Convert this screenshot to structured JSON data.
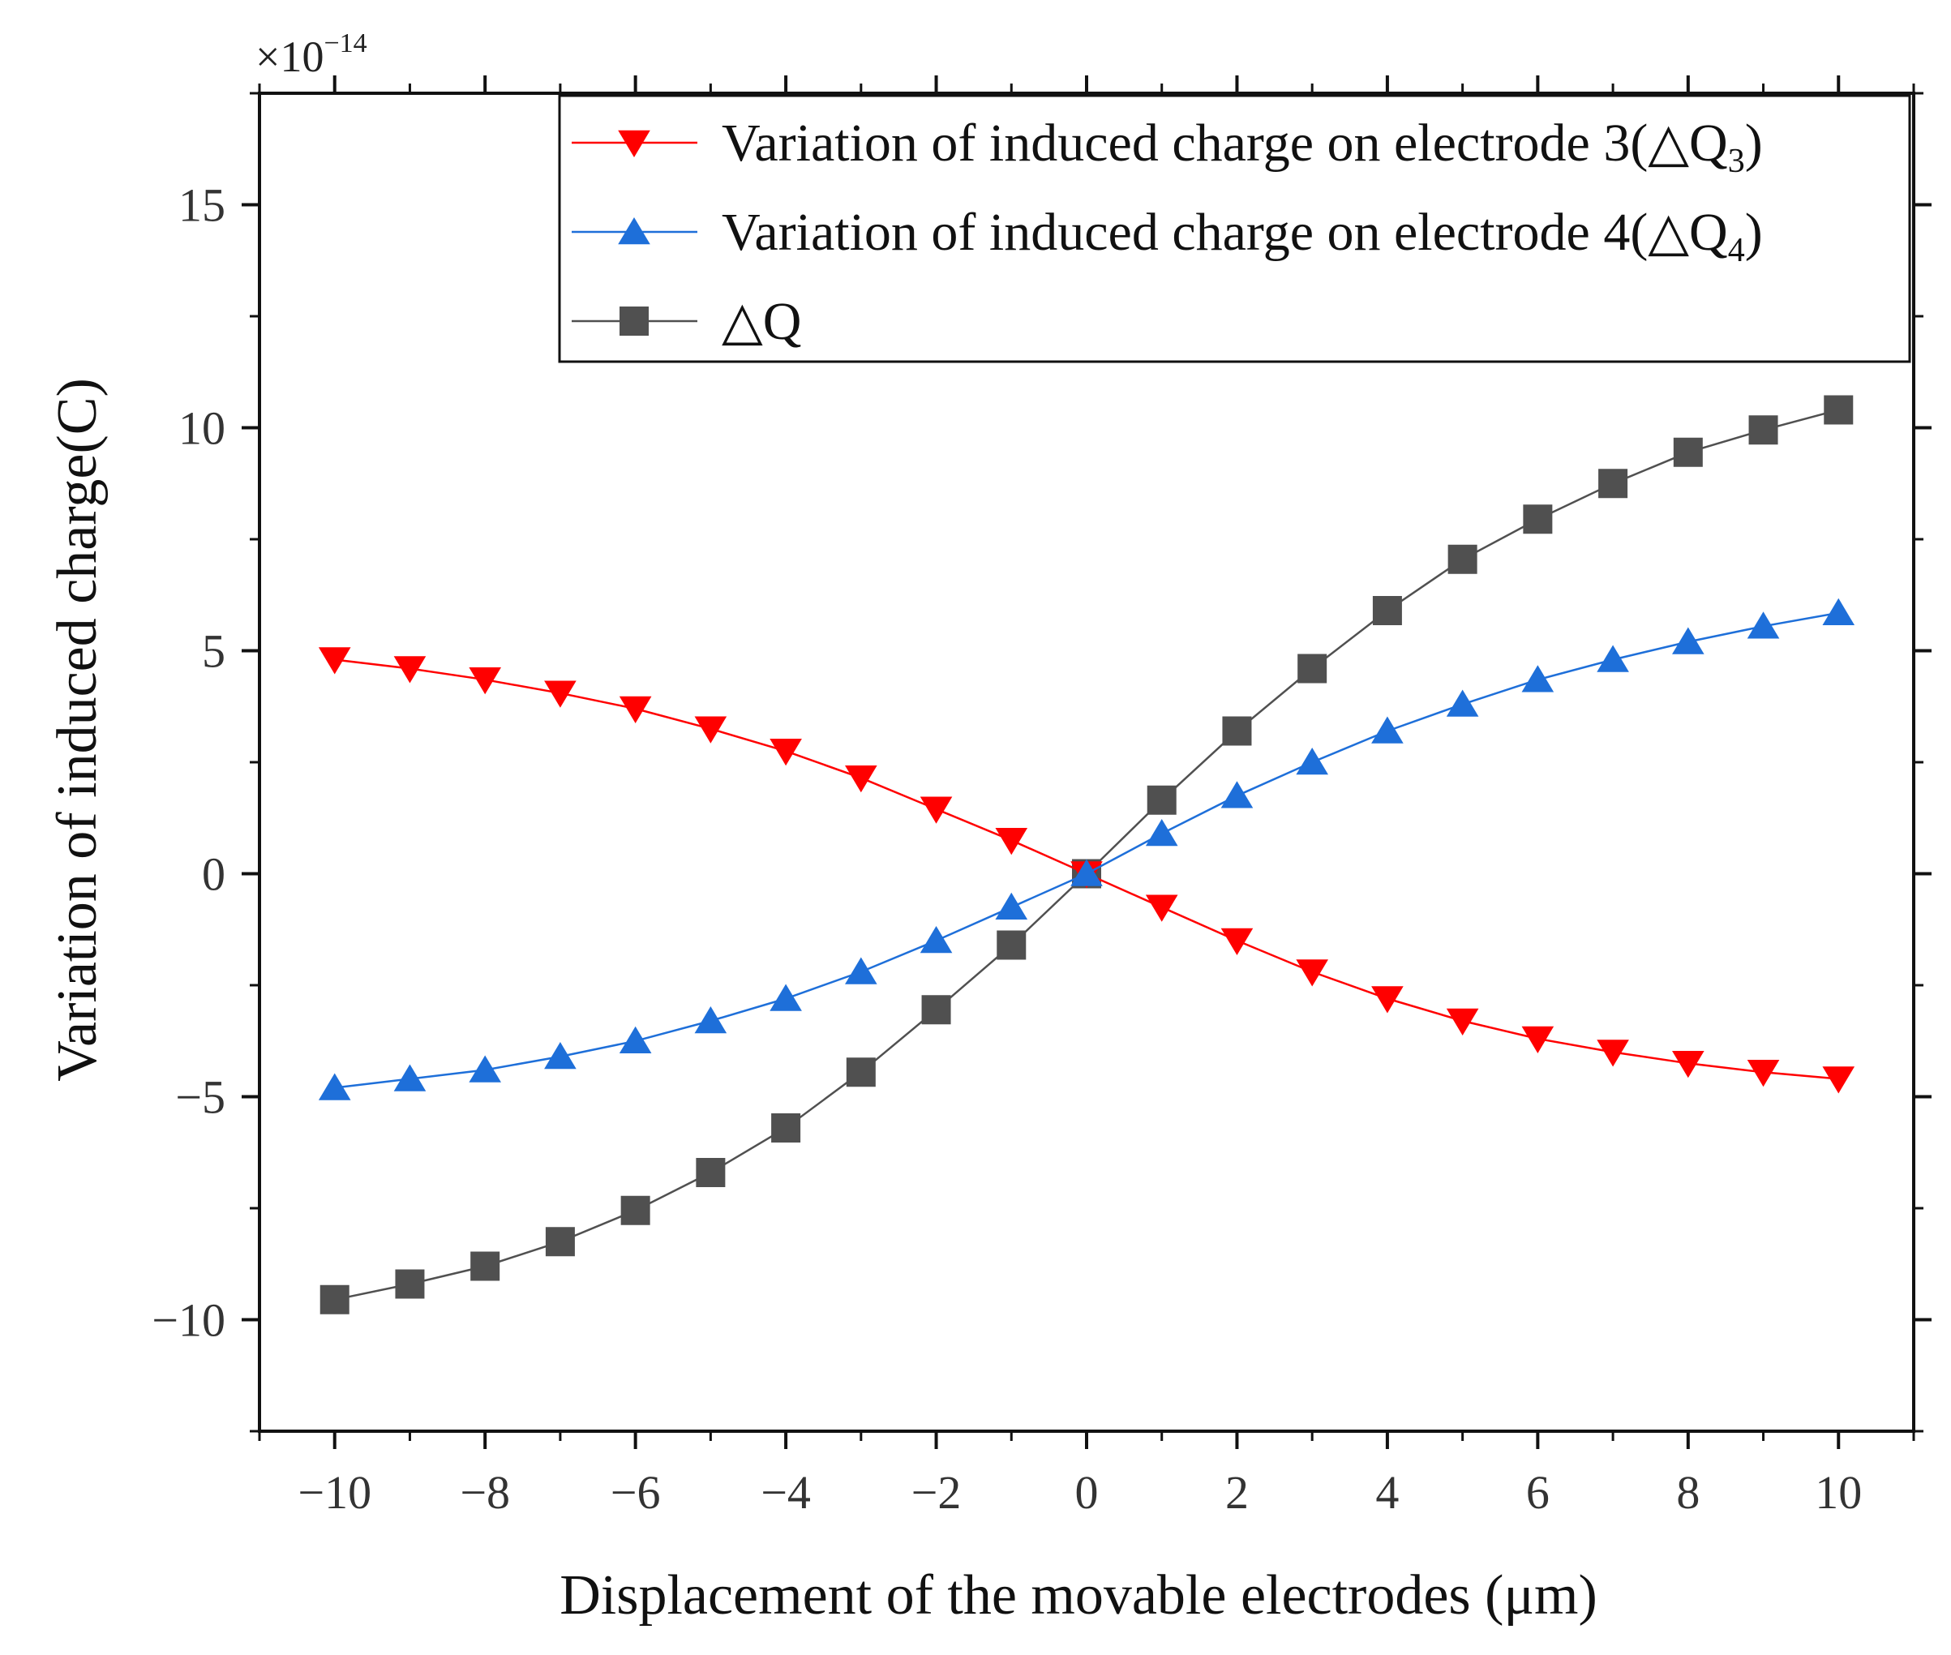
{
  "chart_data": {
    "type": "line",
    "multiplier_label": "×10",
    "multiplier_exponent": "−14",
    "xlabel": "Displacement of the movable electrodes (μm)",
    "ylabel": "Variation of  induced charge(C)",
    "xlim": [
      -11,
      11
    ],
    "ylim": [
      -12.5,
      17.5
    ],
    "xticks": [
      -10,
      -8,
      -6,
      -4,
      -2,
      0,
      2,
      4,
      6,
      8,
      10
    ],
    "xtick_labels": [
      "−10",
      "−8",
      "−6",
      "−4",
      "−2",
      "0",
      "2",
      "4",
      "6",
      "8",
      "10"
    ],
    "yticks": [
      -10,
      -5,
      0,
      5,
      10,
      15
    ],
    "ytick_labels": [
      "−10",
      "−5",
      "0",
      "5",
      "10",
      "15"
    ],
    "grid": false,
    "legend_position": "top-right",
    "x": [
      -10,
      -9,
      -8,
      -7,
      -6,
      -5,
      -4,
      -3,
      -2,
      -1,
      0,
      1,
      2,
      3,
      4,
      5,
      6,
      7,
      8,
      9,
      10
    ],
    "series": [
      {
        "name": "Variation of induced charge on electrode 3(△Q",
        "name_subscript": "3",
        "name_suffix": ")",
        "marker": "triangle-down",
        "color": "#ff0000",
        "values": [
          4.8,
          4.6,
          4.35,
          4.05,
          3.7,
          3.25,
          2.75,
          2.15,
          1.45,
          0.75,
          0.0,
          -0.75,
          -1.5,
          -2.2,
          -2.8,
          -3.3,
          -3.7,
          -4.0,
          -4.25,
          -4.45,
          -4.6
        ]
      },
      {
        "name": "Variation of induced charge on electrode 4(△Q",
        "name_subscript": "4",
        "name_suffix": ")",
        "marker": "triangle-up",
        "color": "#1e6fd9",
        "values": [
          -4.8,
          -4.6,
          -4.4,
          -4.1,
          -3.75,
          -3.3,
          -2.8,
          -2.2,
          -1.5,
          -0.75,
          0.0,
          0.9,
          1.75,
          2.5,
          3.2,
          3.8,
          4.35,
          4.8,
          5.2,
          5.55,
          5.85
        ]
      },
      {
        "name": "△Q",
        "name_subscript": "",
        "name_suffix": "",
        "marker": "square",
        "color": "#505050",
        "values": [
          -9.55,
          -9.2,
          -8.8,
          -8.25,
          -7.55,
          -6.7,
          -5.7,
          -4.45,
          -3.05,
          -1.6,
          0.0,
          1.65,
          3.2,
          4.6,
          5.9,
          7.05,
          7.95,
          8.75,
          9.45,
          9.95,
          10.4
        ]
      }
    ]
  }
}
